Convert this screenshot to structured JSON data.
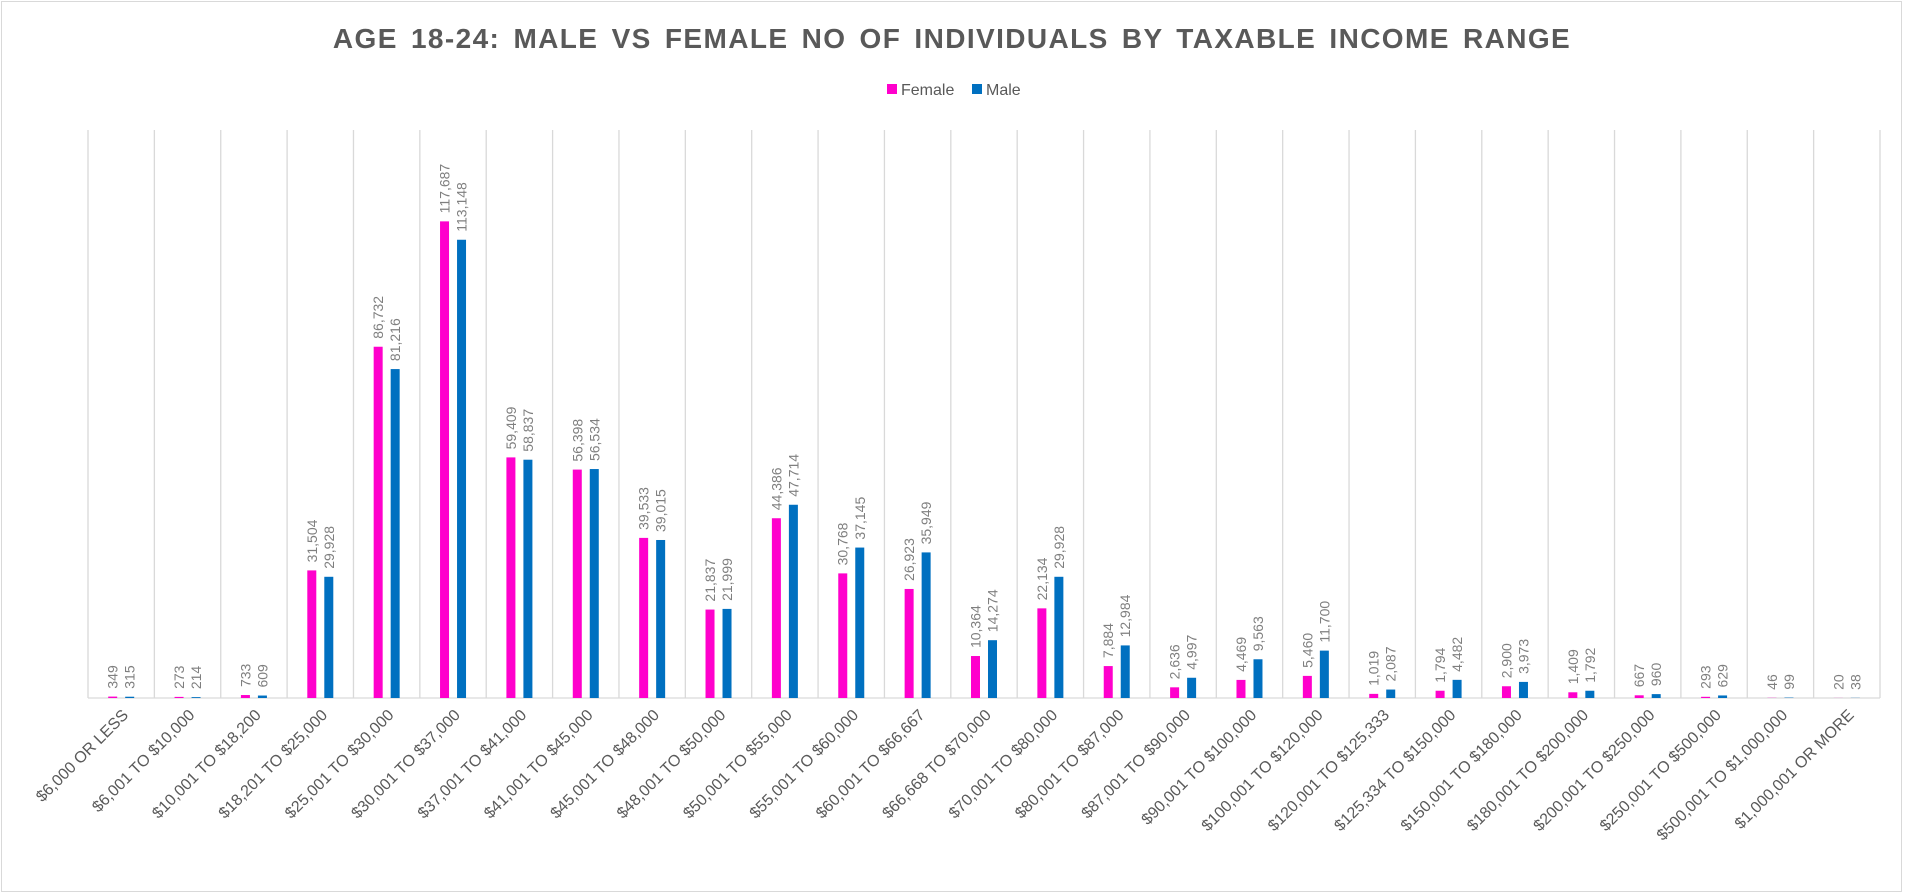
{
  "chart_data": {
    "type": "bar",
    "title": "AGE 18-24: MALE VS FEMALE NO OF INDIVIDUALS BY TAXABLE INCOME RANGE",
    "xlabel": "",
    "ylabel": "",
    "ylim": [
      0,
      140000
    ],
    "grid": "vertical lines between categories",
    "legend_position": "top-center",
    "categories": [
      "$6,000 OR LESS",
      "$6,001 TO $10,000",
      "$10,001 TO $18,200",
      "$18,201 TO $25,000",
      "$25,001 TO $30,000",
      "$30,001 TO $37,000",
      "$37,001 TO $41,000",
      "$41,001 TO $45,000",
      "$45,001 TO $48,000",
      "$48,001 TO $50,000",
      "$50,001 TO $55,000",
      "$55,001 TO $60,000",
      "$60,001 TO $66,667",
      "$66,668 TO $70,000",
      "$70,001 TO $80,000",
      "$80,001 TO $87,000",
      "$87,001 TO $90,000",
      "$90,001 TO $100,000",
      "$100,001 TO $120,000",
      "$120,001 TO $125,333",
      "$125,334 TO $150,000",
      "$150,001 TO $180,000",
      "$180,001 TO $200,000",
      "$200,001 TO $250,000",
      "$250,001 TO $500,000",
      "$500,001 TO $1,000,000",
      "$1,000,001 OR MORE"
    ],
    "series": [
      {
        "name": "Female",
        "color": "#ff00cc",
        "values": [
          349,
          273,
          733,
          31504,
          86732,
          117687,
          59409,
          56398,
          39533,
          21837,
          44386,
          30768,
          26923,
          10364,
          22134,
          7884,
          2636,
          4469,
          5460,
          1019,
          1794,
          2900,
          1409,
          667,
          293,
          46,
          20
        ],
        "labels": [
          "349",
          "273",
          "733",
          "31,504",
          "86,732",
          "117,687",
          "59,409",
          "56,398",
          "39,533",
          "21,837",
          "44,386",
          "30,768",
          "26,923",
          "10,364",
          "22,134",
          "7,884",
          "2,636",
          "4,469",
          "5,460",
          "1,019",
          "1,794",
          "2,900",
          "1,409",
          "667",
          "293",
          "46",
          "20"
        ]
      },
      {
        "name": "Male",
        "color": "#0070c0",
        "values": [
          315,
          214,
          609,
          29928,
          81216,
          113148,
          58837,
          56534,
          39015,
          21999,
          47714,
          37145,
          35949,
          14274,
          29928,
          12984,
          4997,
          9563,
          11700,
          2087,
          4482,
          3973,
          1792,
          960,
          629,
          99,
          38
        ],
        "labels": [
          "315",
          "214",
          "609",
          "29,928",
          "81,216",
          "113,148",
          "58,837",
          "56,534",
          "39,015",
          "21,999",
          "47,714",
          "37,145",
          "35,949",
          "14,274",
          "29,928",
          "12,984",
          "4,997",
          "9,563",
          "11,700",
          "2,087",
          "4,482",
          "3,973",
          "1,792",
          "960",
          "629",
          "99",
          "38"
        ]
      }
    ]
  }
}
